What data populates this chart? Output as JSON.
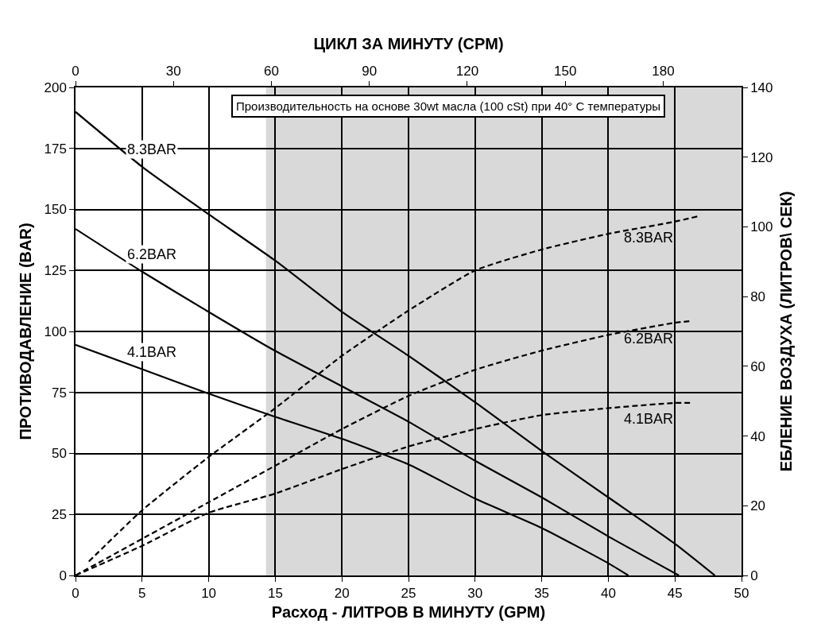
{
  "chart_data": {
    "type": "line",
    "xlabel": "Расход - ЛИТРОВ В МИНУТУ (GPM)",
    "x2label": "ЦИКЛ ЗА МИНУТУ (CPM)",
    "ylabel": "ПРОТИВОДАВЛЕНИЕ (BAR)",
    "y2label": "ЕБЛЕНИЕ ВОЗДУХА (ЛИТРОВ\\ СЕК)",
    "xlim": [
      0,
      50
    ],
    "xticks": [
      0,
      5,
      10,
      15,
      20,
      25,
      30,
      35,
      40,
      45,
      50
    ],
    "x2lim": [
      0,
      204
    ],
    "x2ticks": [
      0,
      30,
      60,
      90,
      120,
      150,
      180
    ],
    "ylim": [
      0,
      200
    ],
    "yticks": [
      0,
      25,
      50,
      75,
      100,
      125,
      150,
      175,
      200
    ],
    "y2lim": [
      0,
      140
    ],
    "y2ticks": [
      0,
      20,
      40,
      60,
      80,
      100,
      120,
      140
    ],
    "grid": true,
    "legend": false,
    "series": [
      {
        "name": "8.3BAR",
        "color": "#000000",
        "line_style": "solid",
        "x": [
          0,
          5,
          10,
          15,
          20,
          25,
          30,
          35,
          40,
          45,
          48
        ],
        "values": [
          190,
          167.5,
          148,
          129,
          108,
          90,
          71,
          51,
          32,
          13,
          0
        ]
      },
      {
        "name": "6.2BAR",
        "color": "#000000",
        "line_style": "solid",
        "x": [
          0,
          5,
          10,
          15,
          20,
          25,
          30,
          35,
          40,
          45.3
        ],
        "values": [
          142,
          124.5,
          108,
          92,
          77.5,
          63,
          47,
          32,
          16,
          0
        ]
      },
      {
        "name": "4.1BAR",
        "color": "#000000",
        "line_style": "solid",
        "x": [
          0,
          5,
          10,
          15,
          20,
          25,
          30,
          35,
          40,
          41.5
        ],
        "values": [
          94.5,
          84.5,
          74.5,
          65,
          56,
          45.5,
          31.5,
          19.5,
          5,
          0
        ]
      },
      {
        "name": "8.3BAR",
        "color": "#000000",
        "line_style": "dashed",
        "axis": "y2",
        "x": [
          1,
          5,
          10,
          15,
          20,
          25,
          30,
          35,
          40,
          45,
          46.7
        ],
        "values": [
          4,
          18.7,
          34,
          48,
          63,
          76,
          87.5,
          93.5,
          98,
          101.5,
          103
        ]
      },
      {
        "name": "6.2BAR",
        "color": "#000000",
        "line_style": "dashed",
        "axis": "y2",
        "x": [
          0,
          5,
          10,
          15,
          20,
          25,
          30,
          35,
          40,
          45,
          46.3
        ],
        "values": [
          0,
          10.5,
          21,
          31.5,
          42,
          51.5,
          59,
          64.5,
          69,
          72.5,
          73
        ]
      },
      {
        "name": "4.1BAR",
        "color": "#000000",
        "line_style": "dashed",
        "axis": "y2",
        "x": [
          0,
          5,
          10,
          15,
          20,
          25,
          30,
          35,
          40,
          45,
          46.3
        ],
        "values": [
          0,
          8.5,
          18,
          23.5,
          30.5,
          37,
          42,
          46,
          48,
          49.5,
          49.5
        ]
      }
    ],
    "bands": [
      {
        "axis": "x",
        "from": 14.3,
        "to": 50,
        "color": "#d9d9d9"
      }
    ],
    "annotations": [
      "Производительность на основе 30wt масла (100 cSt) при 40° C температуры"
    ]
  }
}
